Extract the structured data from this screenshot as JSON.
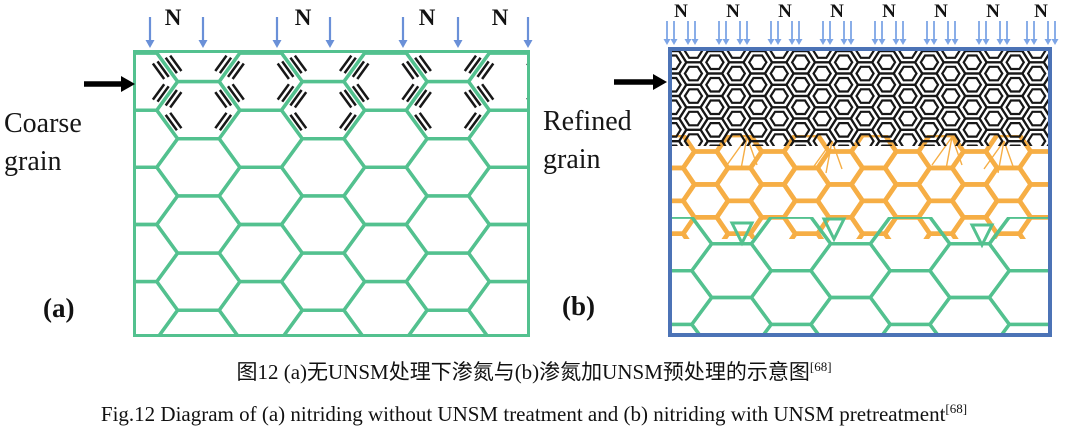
{
  "panel_a": {
    "corner_label": "(a)",
    "side_label": "Coarse grain",
    "nitrogen_labels": [
      "N",
      "N",
      "N",
      "N"
    ]
  },
  "panel_b": {
    "corner_label": "(b)",
    "side_label": "Refined grain",
    "nitrogen_labels": [
      "N",
      "N",
      "N",
      "N",
      "N",
      "N",
      "N",
      "N"
    ]
  },
  "captions": {
    "zh": "图12 (a)无UNSM处理下渗氮与(b)渗氮加UNSM预处理的示意图",
    "zh_sup": "[68]",
    "en": "Fig.12 Diagram of (a) nitriding without UNSM treatment and (b) nitriding with UNSM pretreatment",
    "en_sup": "[68]"
  },
  "colors": {
    "grain_green": "#53c18f",
    "nitride_black": "#171717",
    "refined_orange": "#f6ae45",
    "panel_b_border": "#4c73b6",
    "arrow_blue_a": "#6a90d8",
    "arrow_blue_b": "#7da5e6",
    "direction_arrow_black": "#000000"
  }
}
